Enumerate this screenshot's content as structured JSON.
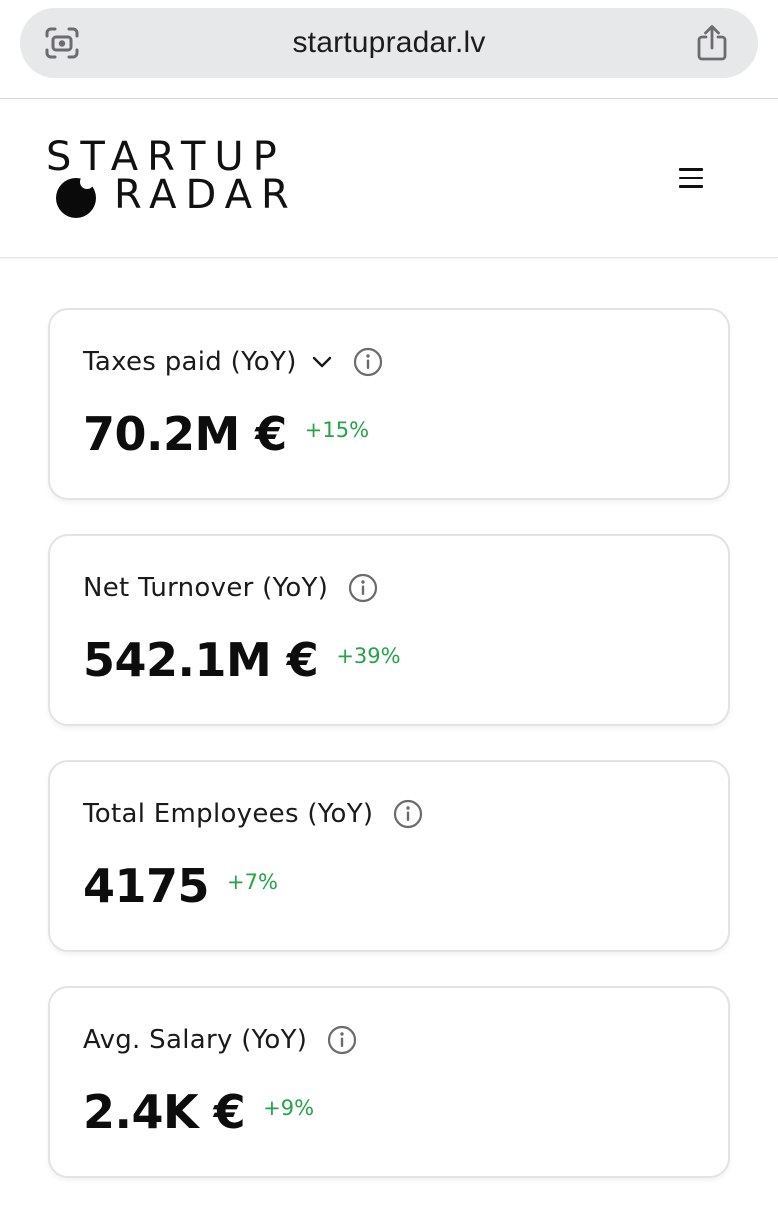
{
  "browser": {
    "url": "startupradar.lv",
    "left_icon": "camera-scan-icon",
    "right_icon": "share-icon"
  },
  "header": {
    "logo_line1": "STARTUP",
    "logo_line2": "RADAR",
    "menu_icon": "hamburger-menu-icon"
  },
  "cards": [
    {
      "title": "Taxes paid (YoY)",
      "value": "70.2M €",
      "change": "+15%",
      "has_dropdown": true
    },
    {
      "title": "Net Turnover (YoY)",
      "value": "542.1M €",
      "change": "+39%",
      "has_dropdown": false
    },
    {
      "title": "Total Employees (YoY)",
      "value": "4175",
      "change": "+7%",
      "has_dropdown": false
    },
    {
      "title": "Avg. Salary (YoY)",
      "value": "2.4K €",
      "change": "+9%",
      "has_dropdown": false
    }
  ],
  "colors": {
    "positive_change": "#22a447",
    "pill_background": "#e7e8ea",
    "card_border": "#e3e3e3"
  }
}
